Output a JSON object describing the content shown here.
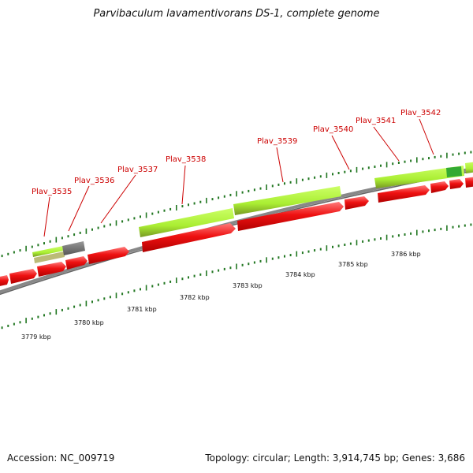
{
  "title": "Parvibaculum lavamentivorans DS-1, complete genome",
  "footer": {
    "accession": "Accession: NC_009719",
    "summary": "Topology: circular; Length: 3,914,745 bp; Genes: 3,686"
  },
  "gene_labels": [
    "Plav_3535",
    "Plav_3536",
    "Plav_3537",
    "Plav_3538",
    "Plav_3539",
    "Plav_3540",
    "Plav_3541",
    "Plav_3542"
  ],
  "scale_labels": [
    "3779 kbp",
    "3780 kbp",
    "3781 kbp",
    "3782 kbp",
    "3783 kbp",
    "3784 kbp",
    "3785 kbp",
    "3786 kbp"
  ],
  "colors": {
    "gene_red": "#ee1111",
    "gene_green": "#aaee33",
    "gene_gray": "#666666",
    "gene_olive": "#bbbb77",
    "gene_darkgreen": "#33aa33",
    "backbone": "#888888",
    "tick": "#227722",
    "label_text": "#cc0000"
  }
}
